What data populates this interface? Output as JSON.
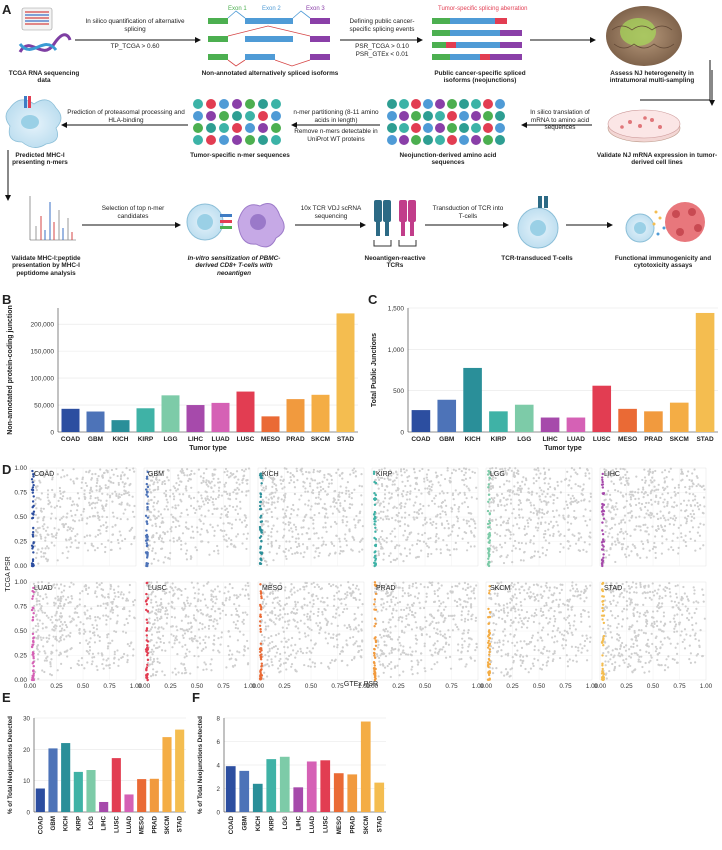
{
  "panels": {
    "A": "A",
    "B": "B",
    "C": "C",
    "D": "D",
    "E": "E",
    "F": "F"
  },
  "workflow": {
    "steps": [
      "TCGA RNA sequencing data",
      "Non-annotated alternatively spliced isoforms",
      "Public cancer-specific spliced isoforms (neojunctions)",
      "Assess NJ heterogeneity in intratumoral multi-sampling",
      "Validate NJ mRNA expression in tumor-derived cell lines",
      "Neojunction-derived amino acid sequences",
      "Tumor-specific n-mer sequences",
      "Predicted MHC-I presenting n-mers",
      "Validate MHC-I:peptide presentation by MHC-I peptidome analysis",
      "In-vitro sensitization of PBMC-derived CD8+ T-cells with neoantigen",
      "Neoantigen-reactive TCRs",
      "TCR-transduced T-cells",
      "Functional immunogenicity and cytotoxicity assays"
    ],
    "arrows": {
      "a1": "In silico quantification of alternative splicing",
      "a1b": "TP_TCGA > 0.60",
      "a2": "Defining public cancer-specific splicing events",
      "a2b": "PSR_TCGA > 0.10",
      "a2c": "PSR_GTEx < 0.01",
      "a3": "In silico translation of mRNA to amino acid sequences",
      "a4": "n-mer partitioning (8-11 amino acids in length)",
      "a4b": "Remove n-mers detectable in UniProt WT proteins",
      "a5": "Prediction of proteasomal processing and HLA-binding",
      "a6": "Selection of top n-mer candidates",
      "a7": "10x TCR VDJ scRNA sequencing",
      "a8": "Transduction of TCR into T-cells"
    },
    "exons": [
      "Exon 1",
      "Exon 2",
      "Exon 3"
    ],
    "aberration": "Tumor-specific splicing aberration"
  },
  "colors": {
    "COAD": "#2c4ea0",
    "GBM": "#4d73b8",
    "KICH": "#2a8f99",
    "KIRP": "#3fb2a6",
    "LGG": "#7dcba8",
    "LIHC": "#a64aab",
    "LUAD": "#d561b5",
    "LUSC": "#e23d52",
    "MESO": "#ea6a35",
    "PRAD": "#f19a3e",
    "SKCM": "#f4ad45",
    "STAD": "#f4bd50"
  },
  "chart_data": [
    {
      "panel": "B",
      "type": "bar",
      "categories": [
        "COAD",
        "GBM",
        "KICH",
        "KIRP",
        "LGG",
        "LIHC",
        "LUAD",
        "LUSC",
        "MESO",
        "PRAD",
        "SKCM",
        "STAD"
      ],
      "values": [
        43000,
        38000,
        22000,
        44000,
        68000,
        50000,
        54000,
        75000,
        29000,
        61000,
        69000,
        220000
      ],
      "xlabel": "Tumor type",
      "ylabel": "Non-annotated protein-coding junction",
      "ylim": [
        0,
        230000
      ],
      "yticks": [
        "0",
        "50,000",
        "100,000",
        "150,000",
        "200,000"
      ],
      "ytick_vals": [
        0,
        50000,
        100000,
        150000,
        200000
      ]
    },
    {
      "panel": "C",
      "type": "bar",
      "categories": [
        "COAD",
        "GBM",
        "KICH",
        "KIRP",
        "LGG",
        "LIHC",
        "LUAD",
        "LUSC",
        "MESO",
        "PRAD",
        "SKCM",
        "STAD"
      ],
      "values": [
        265,
        390,
        775,
        250,
        330,
        175,
        175,
        560,
        280,
        250,
        355,
        1440
      ],
      "xlabel": "Tumor type",
      "ylabel": "Total Public Junctions",
      "ylim": [
        0,
        1500
      ],
      "yticks": [
        "0",
        "500",
        "1,000",
        "1,500"
      ],
      "ytick_vals": [
        0,
        500,
        1000,
        1500
      ]
    },
    {
      "panel": "D",
      "type": "scatter",
      "facets": [
        "COAD",
        "GBM",
        "KICH",
        "KIRP",
        "LGG",
        "LIHC",
        "LUAD",
        "LUSC",
        "MESO",
        "PRAD",
        "SKCM",
        "STAD"
      ],
      "xlabel": "GTEx PSR",
      "ylabel": "TCGA PSR",
      "xlim": [
        0,
        1
      ],
      "ylim": [
        0,
        1
      ],
      "xticks": [
        "0.00",
        "0.25",
        "0.50",
        "0.75",
        "1.00"
      ],
      "yticks": [
        "0.00",
        "0.25",
        "0.50",
        "0.75",
        "1.00"
      ]
    },
    {
      "panel": "E",
      "type": "bar",
      "categories": [
        "COAD",
        "GBM",
        "KICH",
        "KIRP",
        "LGG",
        "LIHC",
        "LUSC",
        "LUAD",
        "MESO",
        "PRAD",
        "SKCM",
        "STAD"
      ],
      "values": [
        7.5,
        20.3,
        22.0,
        12.8,
        13.4,
        3.2,
        17.2,
        5.6,
        10.5,
        10.6,
        23.9,
        26.3
      ],
      "ylabel": "% of Total Neojunctions Detected",
      "ylim": [
        0,
        30
      ],
      "yticks": [
        "0",
        "10",
        "20",
        "30"
      ],
      "ytick_vals": [
        0,
        10,
        20,
        30
      ],
      "series_colors": [
        "#2c4ea0",
        "#4d73b8",
        "#2a8f99",
        "#3fb2a6",
        "#7dcba8",
        "#a64aab",
        "#e23d52",
        "#d561b5",
        "#ea6a35",
        "#f19a3e",
        "#f4ad45",
        "#f4bd50"
      ]
    },
    {
      "panel": "F",
      "type": "bar",
      "categories": [
        "COAD",
        "GBM",
        "KICH",
        "KIRP",
        "LGG",
        "LIHC",
        "LUAD",
        "LUSC",
        "MESO",
        "PRAD",
        "SKCM",
        "STAD"
      ],
      "values": [
        3.9,
        3.5,
        2.4,
        4.5,
        4.7,
        2.1,
        4.3,
        4.4,
        3.3,
        3.2,
        7.7,
        2.5
      ],
      "ylabel": "% of Total Neojunctions Detected",
      "ylim": [
        0,
        8
      ],
      "yticks": [
        "0",
        "2",
        "4",
        "6",
        "8"
      ],
      "ytick_vals": [
        0,
        2,
        4,
        6,
        8
      ],
      "series_colors": [
        "#2c4ea0",
        "#4d73b8",
        "#2a8f99",
        "#3fb2a6",
        "#7dcba8",
        "#a64aab",
        "#d561b5",
        "#e23d52",
        "#ea6a35",
        "#f19a3e",
        "#f4ad45",
        "#f4bd50"
      ]
    }
  ]
}
